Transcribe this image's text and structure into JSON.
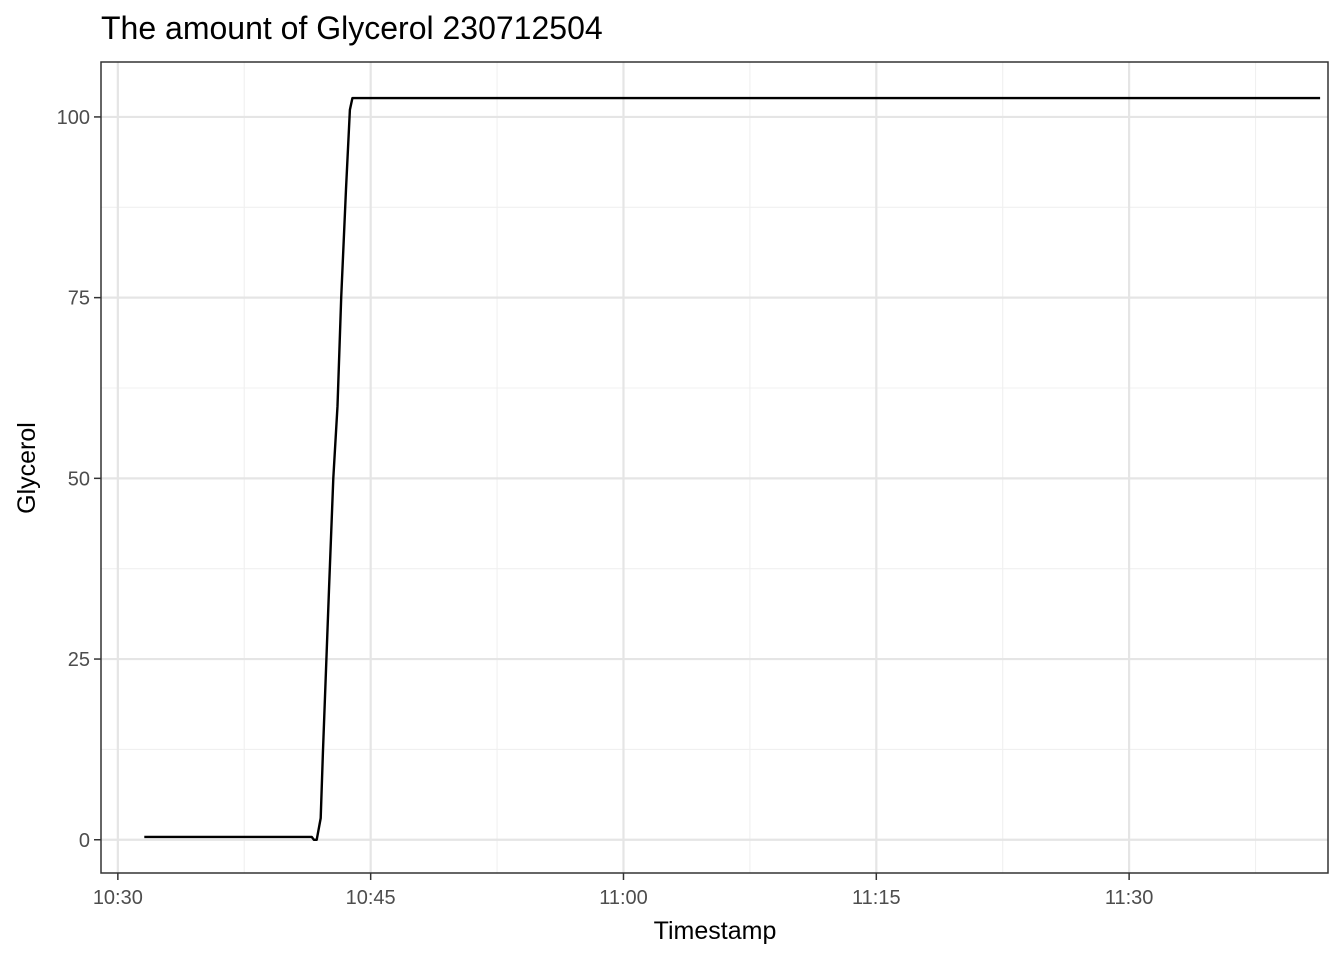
{
  "chart_data": {
    "type": "line",
    "title": "The amount of Glycerol 230712504",
    "xlabel": "Timestamp",
    "ylabel": "Glycerol",
    "x_axis": {
      "ticks": [
        "10:30",
        "10:45",
        "11:00",
        "11:15",
        "11:30"
      ],
      "range": [
        "10:29:00",
        "11:41:48"
      ]
    },
    "y_axis": {
      "ticks": [
        0,
        25,
        50,
        75,
        100
      ],
      "range": [
        -4.6,
        107.6
      ]
    },
    "grid": true,
    "legend": "none",
    "series": [
      {
        "color": "#000000",
        "points": [
          [
            "10:31:34",
            0.4
          ],
          [
            "10:41:30",
            0.4
          ],
          [
            "10:41:38",
            0.0
          ],
          [
            "10:41:48",
            0.0
          ],
          [
            "10:42:02",
            3.0
          ],
          [
            "10:42:10",
            12.0
          ],
          [
            "10:42:32",
            35.0
          ],
          [
            "10:42:47",
            50.0
          ],
          [
            "10:43:02",
            60.0
          ],
          [
            "10:43:15",
            75.0
          ],
          [
            "10:43:32",
            90.0
          ],
          [
            "10:43:46",
            101.0
          ],
          [
            "10:43:55",
            102.6
          ],
          [
            "11:41:20",
            102.6
          ]
        ]
      }
    ]
  }
}
